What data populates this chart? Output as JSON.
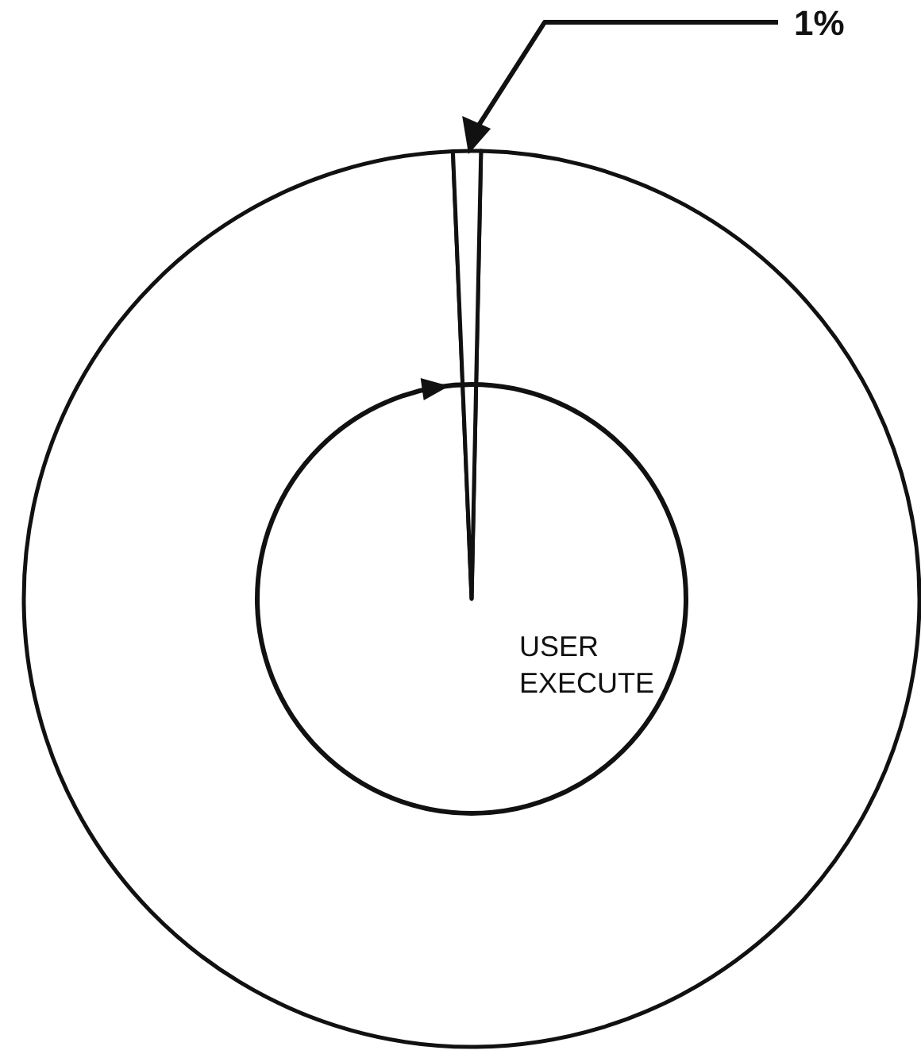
{
  "chart_data": {
    "type": "pie",
    "categories": [
      "USER EXECUTE",
      null
    ],
    "values": [
      99,
      1
    ],
    "colors": [
      "#ffffff",
      "#ffffff"
    ],
    "value_labels": [
      null,
      "1%"
    ]
  }
}
